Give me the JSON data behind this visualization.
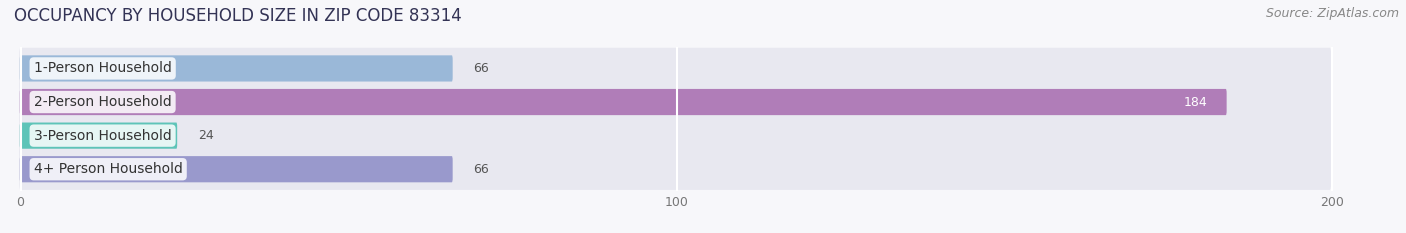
{
  "title": "OCCUPANCY BY HOUSEHOLD SIZE IN ZIP CODE 83314",
  "source": "Source: ZipAtlas.com",
  "categories": [
    "1-Person Household",
    "2-Person Household",
    "3-Person Household",
    "4+ Person Household"
  ],
  "values": [
    66,
    184,
    24,
    66
  ],
  "bar_colors": [
    "#9ab8d8",
    "#b07db8",
    "#5ec4b8",
    "#9999cc"
  ],
  "bar_bg_color": "#e8e8f0",
  "xlim_max": 200,
  "xticks": [
    0,
    100,
    200
  ],
  "title_fontsize": 12,
  "source_fontsize": 9,
  "label_fontsize": 10,
  "value_fontsize": 9,
  "bg_color": "#f7f7fa",
  "bar_height": 0.52,
  "bar_gap": 0.15,
  "value_184_color": "#ffffff",
  "value_other_color": "#555555"
}
